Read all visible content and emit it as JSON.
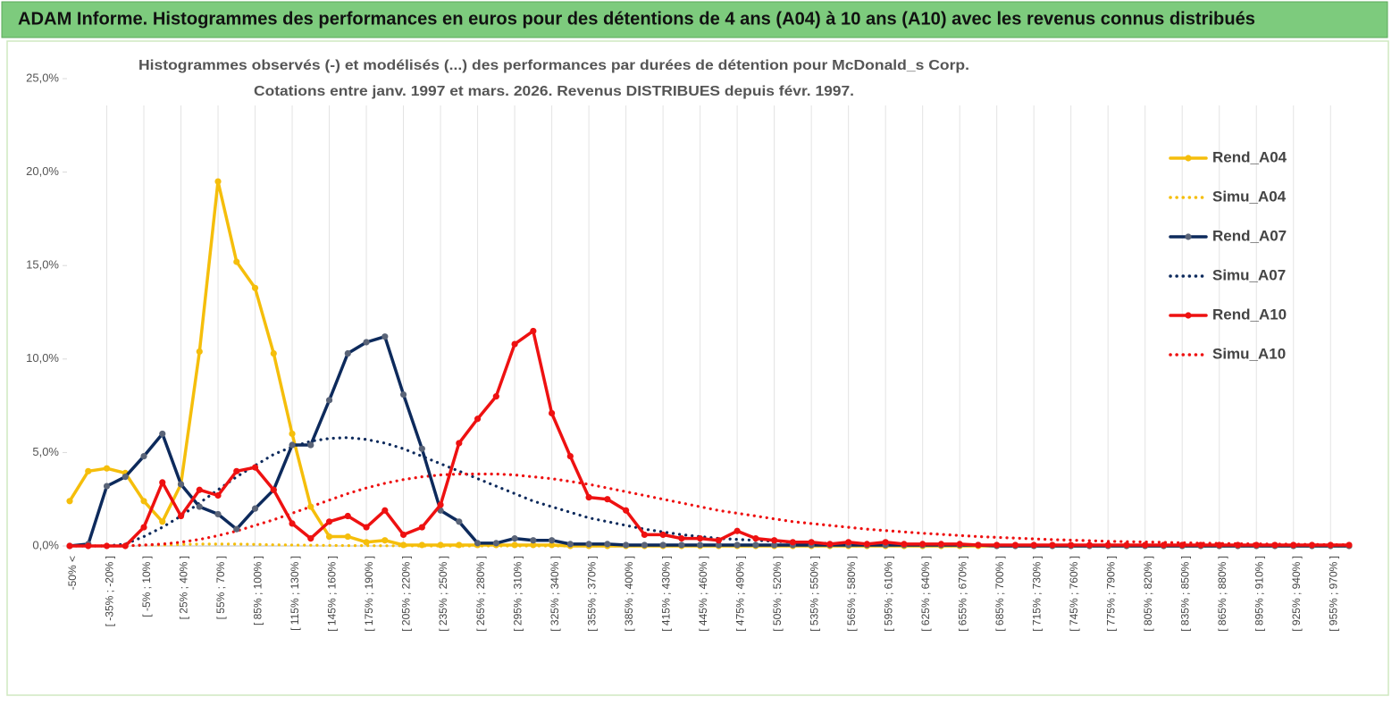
{
  "header": "ADAM Informe. Histogrammes des performances en euros pour des détentions de 4 ans (A04) à 10 ans (A10) avec les revenus connus distribués",
  "chart_data": {
    "type": "line",
    "title": "Histogrammes observés (-) et modélisés (...) des performances par durées de détention pour McDonald_s Corp.",
    "subtitle": "Cotations entre janv. 1997 et mars. 2026. Revenus DISTRIBUES depuis févr. 1997.",
    "categories": [
      "-50% <",
      null,
      "[ -35% ; -20% ]",
      null,
      "[ -5% ; 10% ]",
      null,
      "[ 25% ; 40% ]",
      null,
      "[ 55% ; 70% ]",
      null,
      "[ 85% ; 100% ]",
      null,
      "[ 115% ; 130% ]",
      null,
      "[ 145% ; 160% ]",
      null,
      "[ 175% ; 190% ]",
      null,
      "[ 205% ; 220% ]",
      null,
      "[ 235% ; 250% ]",
      null,
      "[ 265% ; 280% ]",
      null,
      "[ 295% ; 310% ]",
      null,
      "[ 325% ; 340% ]",
      null,
      "[ 355% ; 370% ]",
      null,
      "[ 385% ; 400% ]",
      null,
      "[ 415% ; 430% ]",
      null,
      "[ 445% ; 460% ]",
      null,
      "[ 475% ; 490% ]",
      null,
      "[ 505% ; 520% ]",
      null,
      "[ 535% ; 550% ]",
      null,
      "[ 565% ; 580% ]",
      null,
      "[ 595% ; 610% ]",
      null,
      "[ 625% ; 640% ]",
      null,
      "[ 655% ; 670% ]",
      null,
      "[ 685% ; 700% ]",
      null,
      "[ 715% ; 730% ]",
      null,
      "[ 745% ; 760% ]",
      null,
      "[ 775% ; 790% ]",
      null,
      "[ 805% ; 820% ]",
      null,
      "[ 835% ; 850% ]",
      null,
      "[ 865% ; 880% ]",
      null,
      "[ 895% ; 910% ]",
      null,
      "[ 925% ; 940% ]",
      null,
      "[ 955% ; 970% ]",
      null
    ],
    "series": [
      {
        "name": "Rend_A04",
        "color": "#f5be0b",
        "style": "solid",
        "marker_color": "#f5be0b",
        "values": [
          2.4,
          4.0,
          4.15,
          3.9,
          2.4,
          1.3,
          3.3,
          10.4,
          19.5,
          15.2,
          13.8,
          10.3,
          6.0,
          2.1,
          0.5,
          0.5,
          0.2,
          0.3,
          0.05,
          0.05,
          0.05,
          0.05,
          0.05,
          0.05,
          0.05,
          0.05,
          0.05,
          0,
          0,
          0,
          0,
          0,
          0,
          0,
          0,
          0,
          0,
          0,
          0,
          0,
          0,
          0,
          0,
          0,
          0,
          0,
          0,
          0,
          0,
          0,
          0,
          0,
          0,
          0,
          0,
          0,
          0,
          0,
          0,
          0,
          0,
          0,
          0,
          0,
          0,
          0,
          0,
          0,
          0,
          0
        ]
      },
      {
        "name": "Simu_A04",
        "color": "#f5be0b",
        "style": "dotted",
        "values": [
          0,
          0,
          0,
          0,
          0.05,
          0.05,
          0.08,
          0.1,
          0.1,
          0.1,
          0.08,
          0.06,
          0.05,
          0.04,
          0.03,
          0.02,
          0.02,
          0.01,
          0.01,
          0,
          0,
          0,
          0,
          0,
          0,
          0,
          0,
          0,
          0,
          0,
          0,
          0,
          0,
          0,
          0,
          0,
          0,
          0,
          0,
          0,
          0,
          0,
          0,
          0,
          0,
          0,
          0,
          0,
          0,
          0,
          0,
          0,
          0,
          0,
          0,
          0,
          0,
          0,
          0,
          0,
          0,
          0,
          0,
          0,
          0,
          0,
          0,
          0,
          0,
          0
        ]
      },
      {
        "name": "Rend_A07",
        "color": "#0d2a5c",
        "style": "solid",
        "marker_color": "#5a6478",
        "values": [
          0,
          0.1,
          3.2,
          3.7,
          4.8,
          6.0,
          3.3,
          2.1,
          1.7,
          0.9,
          2.0,
          3.0,
          5.4,
          5.4,
          7.8,
          10.3,
          10.9,
          11.2,
          8.1,
          5.2,
          1.9,
          1.3,
          0.15,
          0.15,
          0.4,
          0.3,
          0.3,
          0.1,
          0.1,
          0.1,
          0.05,
          0.05,
          0.05,
          0.05,
          0.05,
          0.05,
          0.05,
          0.05,
          0.05,
          0.05,
          0.05,
          0.05,
          0.05,
          0.05,
          0.05,
          0.05,
          0.05,
          0.05,
          0.05,
          0.05,
          0,
          0,
          0,
          0,
          0,
          0,
          0,
          0,
          0,
          0,
          0,
          0,
          0,
          0,
          0,
          0,
          0,
          0,
          0,
          0
        ]
      },
      {
        "name": "Simu_A07",
        "color": "#0d2a5c",
        "style": "dotted",
        "values": [
          0,
          0,
          0,
          0.1,
          0.5,
          1.0,
          1.6,
          2.3,
          3.0,
          3.7,
          4.3,
          4.9,
          5.3,
          5.6,
          5.75,
          5.8,
          5.7,
          5.5,
          5.2,
          4.8,
          4.4,
          4.0,
          3.6,
          3.2,
          2.8,
          2.4,
          2.1,
          1.8,
          1.5,
          1.3,
          1.1,
          0.9,
          0.75,
          0.6,
          0.5,
          0.4,
          0.35,
          0.3,
          0.25,
          0.2,
          0.17,
          0.14,
          0.12,
          0.1,
          0.09,
          0.08,
          0.07,
          0.06,
          0.05,
          0.05,
          0.04,
          0.04,
          0.03,
          0.03,
          0.02,
          0.02,
          0.02,
          0.01,
          0.01,
          0.01,
          0,
          0,
          0,
          0,
          0,
          0,
          0,
          0,
          0,
          0
        ]
      },
      {
        "name": "Rend_A10",
        "color": "#ee1111",
        "style": "solid",
        "marker_color": "#ee1111",
        "values": [
          0,
          0,
          0,
          0,
          1.0,
          3.4,
          1.6,
          3.0,
          2.7,
          4.0,
          4.2,
          3.0,
          1.2,
          0.4,
          1.3,
          1.6,
          1.0,
          1.9,
          0.6,
          1.0,
          2.2,
          5.5,
          6.8,
          8.0,
          10.8,
          11.5,
          7.1,
          4.8,
          2.6,
          2.5,
          1.9,
          0.6,
          0.6,
          0.4,
          0.4,
          0.3,
          0.8,
          0.4,
          0.3,
          0.2,
          0.2,
          0.1,
          0.2,
          0.1,
          0.2,
          0.1,
          0.1,
          0.1,
          0.1,
          0.05,
          0.05,
          0.05,
          0.05,
          0.05,
          0.05,
          0.05,
          0.05,
          0.05,
          0.05,
          0.05,
          0.05,
          0.05,
          0.05,
          0.05,
          0.05,
          0.05,
          0.05,
          0.05,
          0.05,
          0.05
        ]
      },
      {
        "name": "Simu_A10",
        "color": "#ee1111",
        "style": "dotted",
        "values": [
          0,
          0,
          0,
          0,
          0.05,
          0.1,
          0.2,
          0.35,
          0.55,
          0.8,
          1.1,
          1.4,
          1.75,
          2.1,
          2.45,
          2.8,
          3.1,
          3.35,
          3.55,
          3.7,
          3.8,
          3.85,
          3.85,
          3.85,
          3.8,
          3.7,
          3.6,
          3.45,
          3.3,
          3.1,
          2.9,
          2.7,
          2.5,
          2.3,
          2.1,
          1.9,
          1.75,
          1.6,
          1.45,
          1.3,
          1.2,
          1.1,
          1.0,
          0.9,
          0.82,
          0.75,
          0.68,
          0.62,
          0.56,
          0.5,
          0.46,
          0.42,
          0.38,
          0.34,
          0.31,
          0.28,
          0.25,
          0.23,
          0.21,
          0.19,
          0.17,
          0.15,
          0.14,
          0.12,
          0.11,
          0.1,
          0.09,
          0.08,
          0.07,
          0.06
        ]
      }
    ],
    "ylim": [
      0,
      25
    ],
    "yticks": [
      {
        "value": 0,
        "label": "0,0%"
      },
      {
        "value": 5,
        "label": "5,0%"
      },
      {
        "value": 10,
        "label": "10,0%"
      },
      {
        "value": 15,
        "label": "15,0%"
      },
      {
        "value": 20,
        "label": "20,0%"
      },
      {
        "value": 25,
        "label": "25,0%"
      }
    ],
    "grid": "x",
    "legend": "right"
  }
}
